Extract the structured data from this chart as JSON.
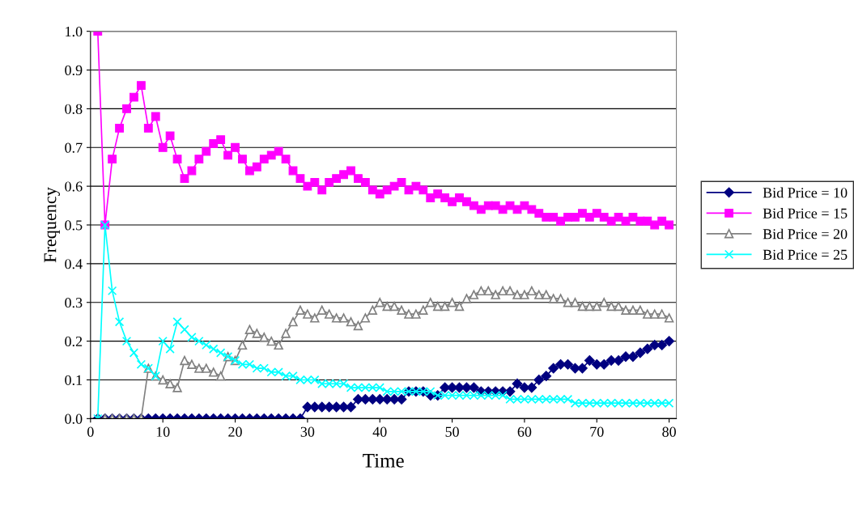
{
  "chart_data": {
    "type": "line",
    "xlabel": "Time",
    "ylabel": "Frequency",
    "x": [
      1,
      2,
      3,
      4,
      5,
      6,
      7,
      8,
      9,
      10,
      11,
      12,
      13,
      14,
      15,
      16,
      17,
      18,
      19,
      20,
      21,
      22,
      23,
      24,
      25,
      26,
      27,
      28,
      29,
      30,
      31,
      32,
      33,
      34,
      35,
      36,
      37,
      38,
      39,
      40,
      41,
      42,
      43,
      44,
      45,
      46,
      47,
      48,
      49,
      50,
      51,
      52,
      53,
      54,
      55,
      56,
      57,
      58,
      59,
      60,
      61,
      62,
      63,
      64,
      65,
      66,
      67,
      68,
      69,
      70,
      71,
      72,
      73,
      74,
      75,
      76,
      77,
      78,
      79,
      80
    ],
    "xlim": [
      0,
      81
    ],
    "xticks": [
      0,
      10,
      20,
      30,
      40,
      50,
      60,
      70,
      80
    ],
    "ylim": [
      0,
      1.0
    ],
    "yticks": [
      {
        "value": 0,
        "label": "0.0"
      },
      0.1,
      0.2,
      0.3,
      0.4,
      0.5,
      0.6,
      0.7,
      0.8,
      0.9,
      {
        "value": 1.0,
        "label": "1.0"
      }
    ],
    "grid": "y",
    "legend": "right",
    "series": [
      {
        "name": "Bid Price = 10",
        "color": "#000080",
        "marker": "diamond",
        "values": [
          0,
          0,
          0,
          0,
          0,
          0,
          0,
          0,
          0,
          0,
          0,
          0,
          0,
          0,
          0,
          0,
          0,
          0,
          0,
          0,
          0,
          0,
          0,
          0,
          0,
          0,
          0,
          0,
          0,
          0.03,
          0.03,
          0.03,
          0.03,
          0.03,
          0.03,
          0.03,
          0.05,
          0.05,
          0.05,
          0.05,
          0.05,
          0.05,
          0.05,
          0.07,
          0.07,
          0.07,
          0.06,
          0.06,
          0.08,
          0.08,
          0.08,
          0.08,
          0.08,
          0.07,
          0.07,
          0.07,
          0.07,
          0.07,
          0.09,
          0.08,
          0.08,
          0.1,
          0.11,
          0.13,
          0.14,
          0.14,
          0.13,
          0.13,
          0.15,
          0.14,
          0.14,
          0.15,
          0.15,
          0.16,
          0.16,
          0.17,
          0.18,
          0.19,
          0.19,
          0.2
        ]
      },
      {
        "name": "Bid Price = 15",
        "color": "#ff00ff",
        "marker": "square",
        "values": [
          1.0,
          0.5,
          0.67,
          0.75,
          0.8,
          0.83,
          0.86,
          0.75,
          0.78,
          0.7,
          0.73,
          0.67,
          0.62,
          0.64,
          0.67,
          0.69,
          0.71,
          0.72,
          0.68,
          0.7,
          0.67,
          0.64,
          0.65,
          0.67,
          0.68,
          0.69,
          0.67,
          0.64,
          0.62,
          0.6,
          0.61,
          0.59,
          0.61,
          0.62,
          0.63,
          0.64,
          0.62,
          0.61,
          0.59,
          0.58,
          0.59,
          0.6,
          0.61,
          0.59,
          0.6,
          0.59,
          0.57,
          0.58,
          0.57,
          0.56,
          0.57,
          0.56,
          0.55,
          0.54,
          0.55,
          0.55,
          0.54,
          0.55,
          0.54,
          0.55,
          0.54,
          0.53,
          0.52,
          0.52,
          0.51,
          0.52,
          0.52,
          0.53,
          0.52,
          0.53,
          0.52,
          0.51,
          0.52,
          0.51,
          0.52,
          0.51,
          0.51,
          0.5,
          0.51,
          0.5
        ]
      },
      {
        "name": "Bid Price = 20",
        "color": "#808080",
        "marker": "triangle",
        "values": [
          0,
          0,
          0,
          0,
          0,
          0,
          0,
          0.13,
          0.11,
          0.1,
          0.09,
          0.08,
          0.15,
          0.14,
          0.13,
          0.13,
          0.12,
          0.11,
          0.16,
          0.15,
          0.19,
          0.23,
          0.22,
          0.21,
          0.2,
          0.19,
          0.22,
          0.25,
          0.28,
          0.27,
          0.26,
          0.28,
          0.27,
          0.26,
          0.26,
          0.25,
          0.24,
          0.26,
          0.28,
          0.3,
          0.29,
          0.29,
          0.28,
          0.27,
          0.27,
          0.28,
          0.3,
          0.29,
          0.29,
          0.3,
          0.29,
          0.31,
          0.32,
          0.33,
          0.33,
          0.32,
          0.33,
          0.33,
          0.32,
          0.32,
          0.33,
          0.32,
          0.32,
          0.31,
          0.31,
          0.3,
          0.3,
          0.29,
          0.29,
          0.29,
          0.3,
          0.29,
          0.29,
          0.28,
          0.28,
          0.28,
          0.27,
          0.27,
          0.27,
          0.26
        ]
      },
      {
        "name": "Bid Price = 25",
        "color": "#00ffff",
        "marker": "cross",
        "values": [
          0,
          0.5,
          0.33,
          0.25,
          0.2,
          0.17,
          0.14,
          0.13,
          0.11,
          0.2,
          0.18,
          0.25,
          0.23,
          0.21,
          0.2,
          0.19,
          0.18,
          0.17,
          0.16,
          0.15,
          0.14,
          0.14,
          0.13,
          0.13,
          0.12,
          0.12,
          0.11,
          0.11,
          0.1,
          0.1,
          0.1,
          0.09,
          0.09,
          0.09,
          0.09,
          0.08,
          0.08,
          0.08,
          0.08,
          0.08,
          0.07,
          0.07,
          0.07,
          0.07,
          0.07,
          0.07,
          0.07,
          0.06,
          0.06,
          0.06,
          0.06,
          0.06,
          0.06,
          0.06,
          0.06,
          0.06,
          0.06,
          0.05,
          0.05,
          0.05,
          0.05,
          0.05,
          0.05,
          0.05,
          0.05,
          0.05,
          0.04,
          0.04,
          0.04,
          0.04,
          0.04,
          0.04,
          0.04,
          0.04,
          0.04,
          0.04,
          0.04,
          0.04,
          0.04,
          0.04
        ]
      }
    ]
  }
}
